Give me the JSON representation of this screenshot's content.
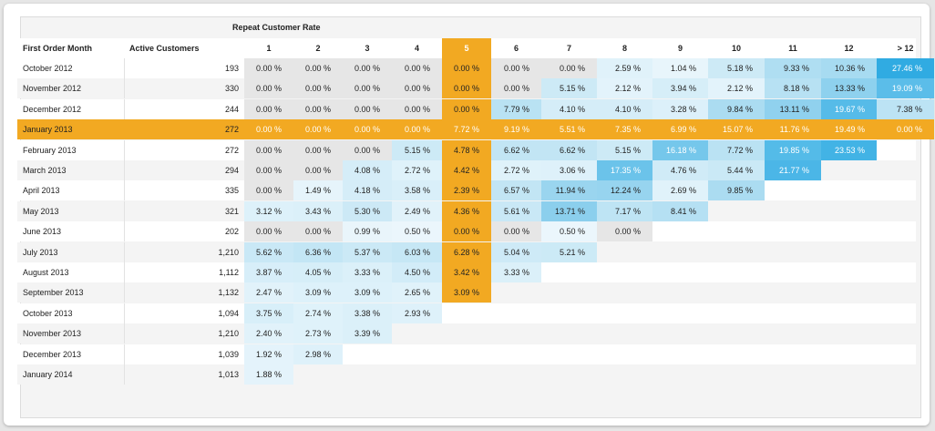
{
  "section_title": "Repeat Customer Rate",
  "columns": {
    "first_order_month": "First Order Month",
    "active_customers": "Active Customers",
    "periods": [
      "1",
      "2",
      "3",
      "4",
      "5",
      "6",
      "7",
      "8",
      "9",
      "10",
      "11",
      "12",
      "> 12"
    ]
  },
  "highlight": {
    "column": "5",
    "row": "January 2013",
    "color": "#f2a922"
  },
  "rows": [
    {
      "month": "October 2012",
      "active": "193",
      "rates": [
        "0.00 %",
        "0.00 %",
        "0.00 %",
        "0.00 %",
        "0.00 %",
        "0.00 %",
        "0.00 %",
        "2.59 %",
        "1.04 %",
        "5.18 %",
        "9.33 %",
        "10.36 %",
        "27.46 %"
      ]
    },
    {
      "month": "November 2012",
      "active": "330",
      "rates": [
        "0.00 %",
        "0.00 %",
        "0.00 %",
        "0.00 %",
        "0.00 %",
        "0.00 %",
        "5.15 %",
        "2.12 %",
        "3.94 %",
        "2.12 %",
        "8.18 %",
        "13.33 %",
        "19.09 %"
      ]
    },
    {
      "month": "December 2012",
      "active": "244",
      "rates": [
        "0.00 %",
        "0.00 %",
        "0.00 %",
        "0.00 %",
        "0.00 %",
        "7.79 %",
        "4.10 %",
        "4.10 %",
        "3.28 %",
        "9.84 %",
        "13.11 %",
        "19.67 %",
        "7.38 %"
      ]
    },
    {
      "month": "January 2013",
      "active": "272",
      "rates": [
        "0.00 %",
        "0.00 %",
        "0.00 %",
        "0.00 %",
        "7.72 %",
        "9.19 %",
        "5.51 %",
        "7.35 %",
        "6.99 %",
        "15.07 %",
        "11.76 %",
        "19.49 %",
        "0.00 %"
      ]
    },
    {
      "month": "February 2013",
      "active": "272",
      "rates": [
        "0.00 %",
        "0.00 %",
        "0.00 %",
        "5.15 %",
        "4.78 %",
        "6.62 %",
        "6.62 %",
        "5.15 %",
        "16.18 %",
        "7.72 %",
        "19.85 %",
        "23.53 %"
      ]
    },
    {
      "month": "March 2013",
      "active": "294",
      "rates": [
        "0.00 %",
        "0.00 %",
        "4.08 %",
        "2.72 %",
        "4.42 %",
        "2.72 %",
        "3.06 %",
        "17.35 %",
        "4.76 %",
        "5.44 %",
        "21.77 %"
      ]
    },
    {
      "month": "April 2013",
      "active": "335",
      "rates": [
        "0.00 %",
        "1.49 %",
        "4.18 %",
        "3.58 %",
        "2.39 %",
        "6.57 %",
        "11.94 %",
        "12.24 %",
        "2.69 %",
        "9.85 %"
      ]
    },
    {
      "month": "May 2013",
      "active": "321",
      "rates": [
        "3.12 %",
        "3.43 %",
        "5.30 %",
        "2.49 %",
        "4.36 %",
        "5.61 %",
        "13.71 %",
        "7.17 %",
        "8.41 %"
      ]
    },
    {
      "month": "June 2013",
      "active": "202",
      "rates": [
        "0.00 %",
        "0.00 %",
        "0.99 %",
        "0.50 %",
        "0.00 %",
        "0.00 %",
        "0.50 %",
        "0.00 %"
      ]
    },
    {
      "month": "July 2013",
      "active": "1,210",
      "rates": [
        "5.62 %",
        "6.36 %",
        "5.37 %",
        "6.03 %",
        "6.28 %",
        "5.04 %",
        "5.21 %"
      ]
    },
    {
      "month": "August 2013",
      "active": "1,112",
      "rates": [
        "3.87 %",
        "4.05 %",
        "3.33 %",
        "4.50 %",
        "3.42 %",
        "3.33 %"
      ]
    },
    {
      "month": "September 2013",
      "active": "1,132",
      "rates": [
        "2.47 %",
        "3.09 %",
        "3.09 %",
        "2.65 %",
        "3.09 %"
      ]
    },
    {
      "month": "October 2013",
      "active": "1,094",
      "rates": [
        "3.75 %",
        "2.74 %",
        "3.38 %",
        "2.93 %"
      ]
    },
    {
      "month": "November 2013",
      "active": "1,210",
      "rates": [
        "2.40 %",
        "2.73 %",
        "3.39 %"
      ]
    },
    {
      "month": "December 2013",
      "active": "1,039",
      "rates": [
        "1.92 %",
        "2.98 %"
      ]
    },
    {
      "month": "January 2014",
      "active": "1,013",
      "rates": [
        "1.88 %"
      ]
    }
  ]
}
